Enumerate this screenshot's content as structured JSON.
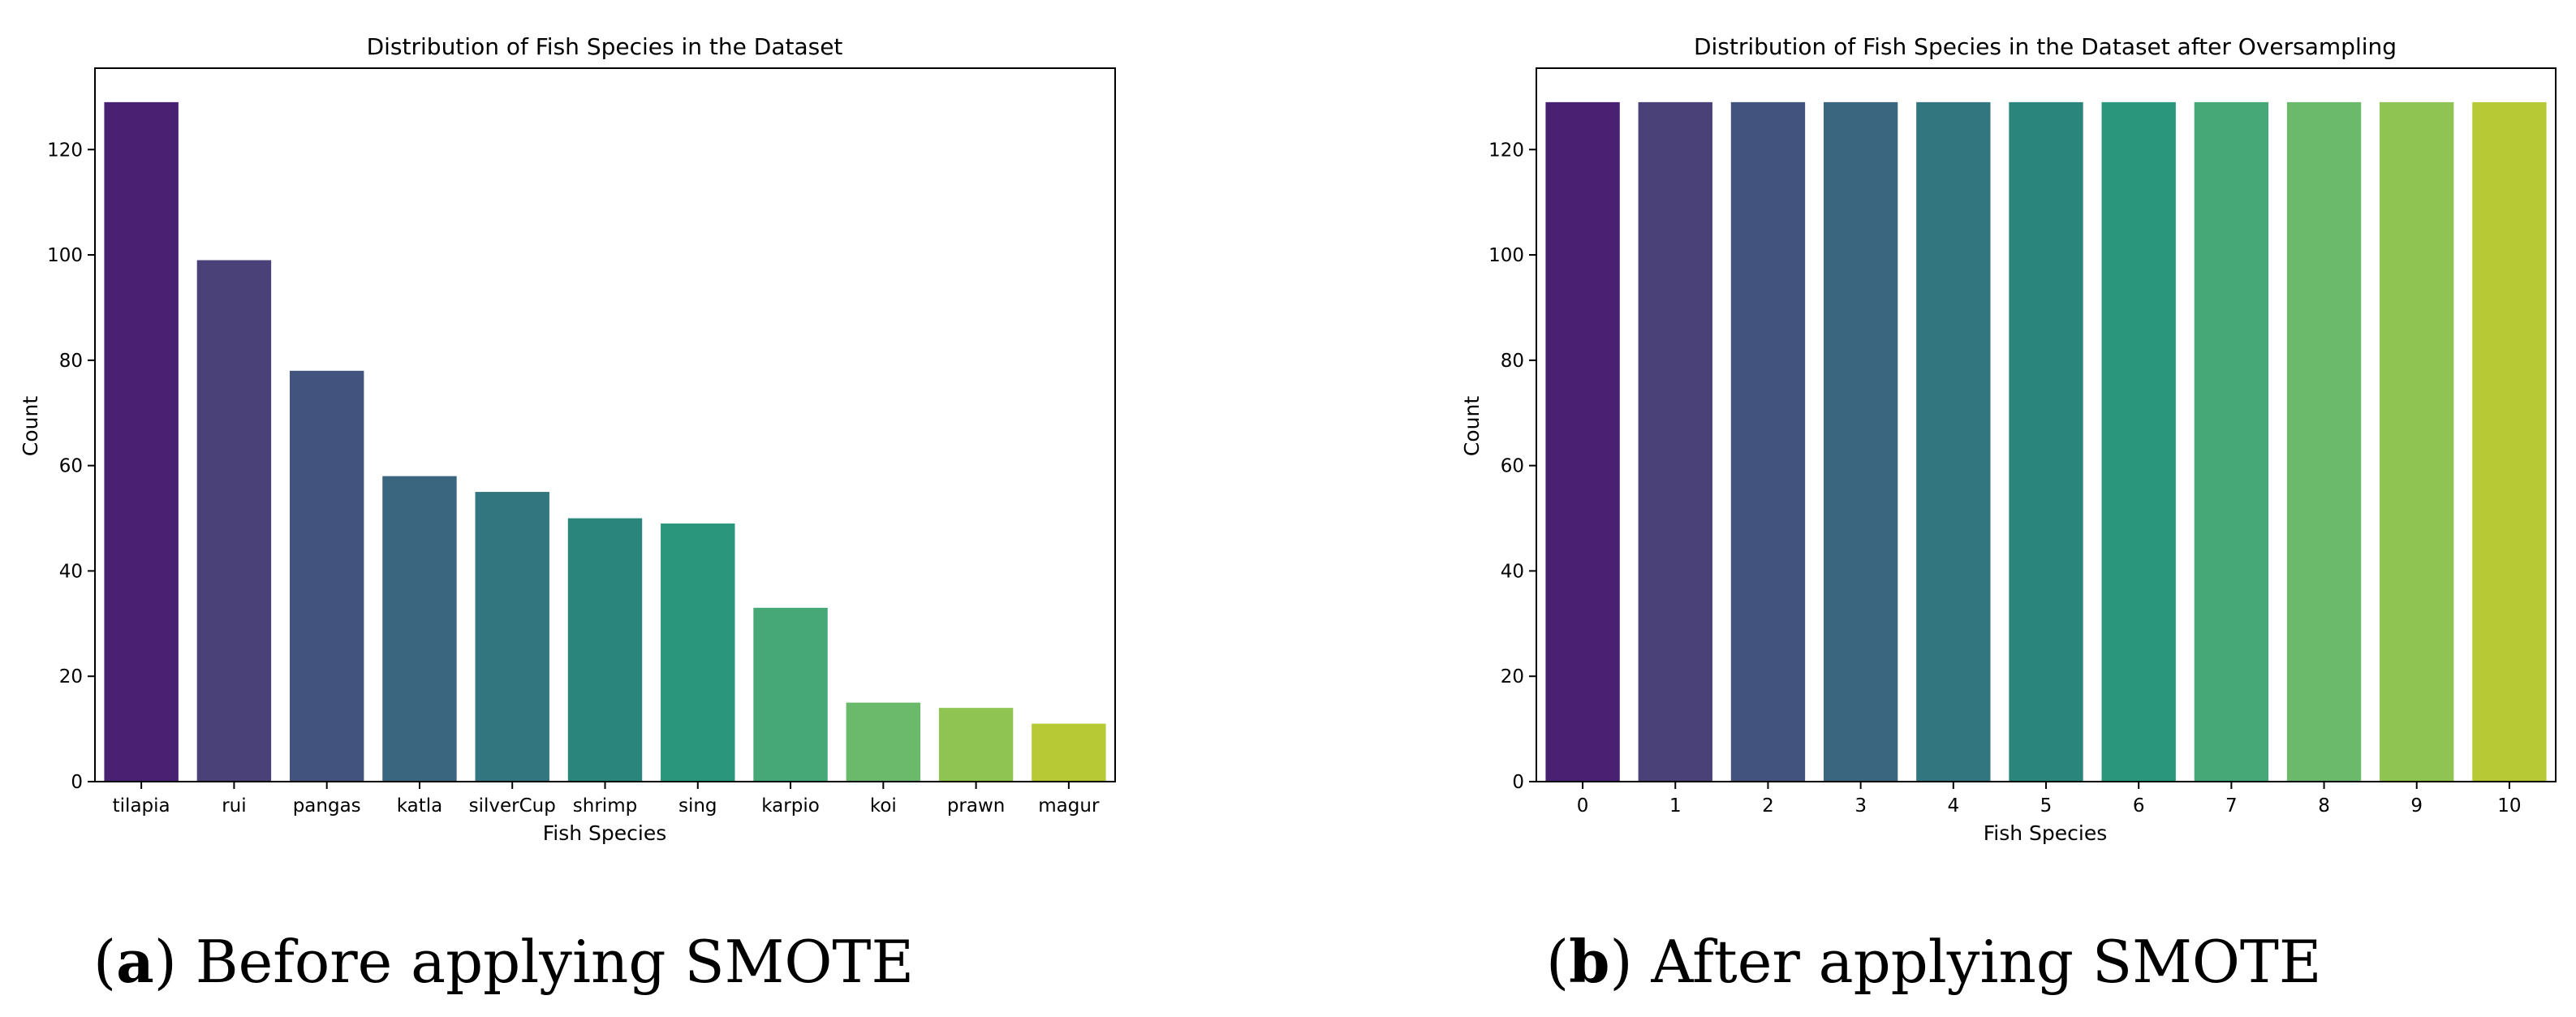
{
  "palette": [
    "#482173",
    "#4a4178",
    "#42537e",
    "#3b6680",
    "#32767f",
    "#2a867d",
    "#2a977c",
    "#45a876",
    "#6bba6b",
    "#8fc452",
    "#b7c934"
  ],
  "chart_data": [
    {
      "type": "bar",
      "title": "Distribution of Fish Species in the Dataset",
      "xlabel": "Fish Species",
      "ylabel": "Count",
      "categories": [
        "tilapia",
        "rui",
        "pangas",
        "katla",
        "silverCup",
        "shrimp",
        "sing",
        "karpio",
        "koi",
        "prawn",
        "magur"
      ],
      "values": [
        129,
        99,
        78,
        58,
        55,
        50,
        49,
        33,
        15,
        14,
        11
      ],
      "ylim": [
        0,
        135.45
      ],
      "yticks": [
        "0",
        "20",
        "40",
        "60",
        "80",
        "100",
        "120"
      ],
      "grid": false
    },
    {
      "type": "bar",
      "title": "Distribution of Fish Species in the Dataset after Oversampling",
      "xlabel": "Fish Species",
      "ylabel": "Count",
      "categories": [
        "0",
        "1",
        "2",
        "3",
        "4",
        "5",
        "6",
        "7",
        "8",
        "9",
        "10"
      ],
      "values": [
        129,
        129,
        129,
        129,
        129,
        129,
        129,
        129,
        129,
        129,
        129
      ],
      "ylim": [
        0,
        135.45
      ],
      "yticks": [
        "0",
        "20",
        "40",
        "60",
        "80",
        "100",
        "120"
      ],
      "grid": false
    }
  ],
  "captions": [
    {
      "letter": "a",
      "text": "Before applying SMOTE"
    },
    {
      "letter": "b",
      "text": "After applying SMOTE"
    }
  ]
}
